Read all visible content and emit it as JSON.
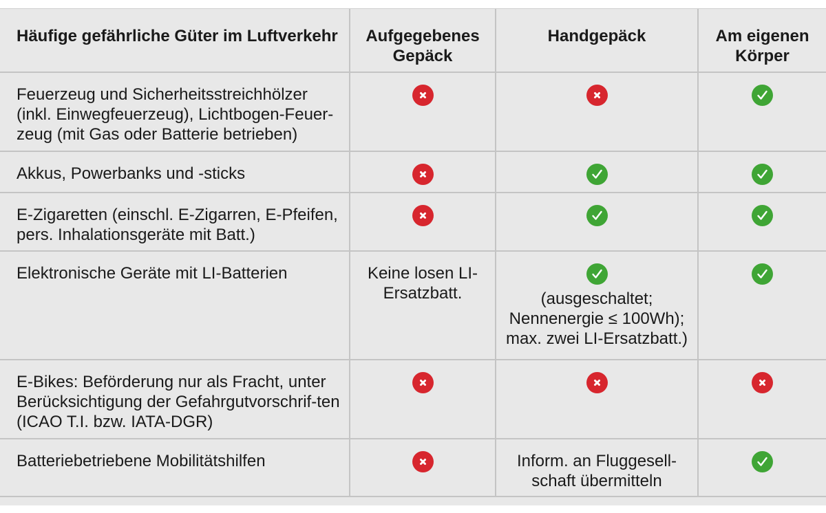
{
  "header": {
    "col1": "Häufige gefährliche Güter im Luftverkehr",
    "col2": "Aufgegebenes Gepäck",
    "col3": "Handgepäck",
    "col4": "Am eigenen Körper"
  },
  "rows": [
    {
      "item": "Feuerzeug und Sicherheitsstreichhölzer (inkl. Einwegfeuerzeug), Lichtbogen-Feuer-zeug (mit Gas oder Batterie betrieben)",
      "checked": "no",
      "cabin": "no",
      "body": "yes"
    },
    {
      "item": "Akkus, Powerbanks und -sticks",
      "checked": "no",
      "cabin": "yes",
      "body": "yes"
    },
    {
      "item": "E-Zigaretten (einschl. E-Zigarren, E-Pfeifen, pers. Inhalationsgeräte mit Batt.)",
      "checked": "no",
      "cabin": "yes",
      "body": "yes"
    },
    {
      "item": "Elektronische Geräte mit LI-Batterien",
      "checked_text": "Keine losen LI-Ersatzbatt.",
      "cabin": "yes",
      "cabin_note": "(ausgeschaltet; Nennenergie ≤ 100Wh); max. zwei LI-Ersatzbatt.)",
      "body": "yes"
    },
    {
      "item": "E-Bikes: Beförderung nur als Fracht, unter Berücksichtigung der Gefahrgutvorschrif-ten (ICAO T.I. bzw. IATA-DGR)",
      "checked": "no",
      "cabin": "no",
      "body": "no"
    },
    {
      "item": "Batteriebetriebene Mobilitätshilfen",
      "checked": "no",
      "cabin_text": "Inform. an Fluggesell-schaft übermitteln",
      "body": "yes"
    }
  ],
  "icons": {
    "no": "cross-icon",
    "yes": "check-icon"
  },
  "colors": {
    "no": "#d7262e",
    "yes": "#3fa535",
    "background": "#e8e8e8"
  }
}
